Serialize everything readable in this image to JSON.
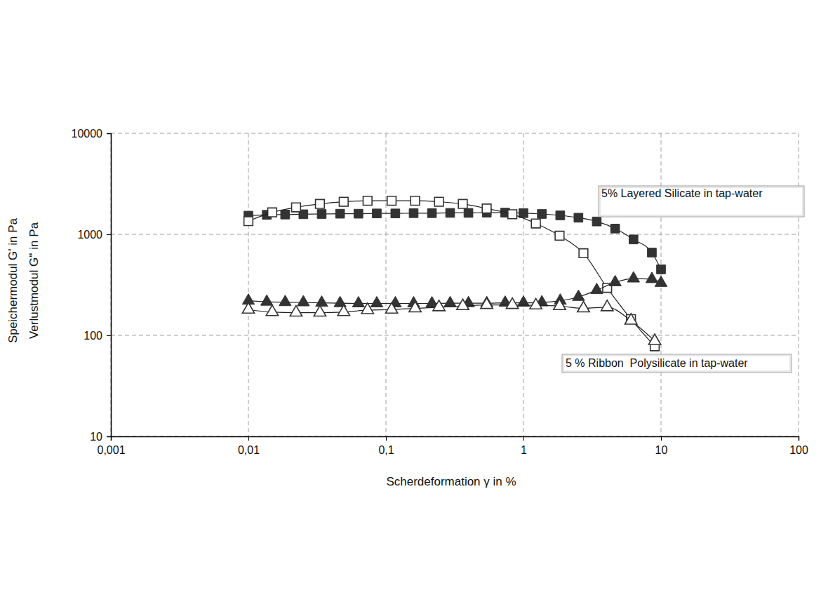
{
  "chart_data": {
    "type": "scatter",
    "xlabel": "Scherdeformation γ in %",
    "ylabel": [
      "Speichermodul G' in Pa",
      "Verlustmodul G'' in Pa"
    ],
    "annotations": [
      "5% Layered Silicate in tap-water",
      "5 % Ribbon  Polysilicate in tap-water"
    ],
    "log": true,
    "grid": true,
    "xlim": [
      0.001,
      100
    ],
    "ylim": [
      10,
      10000
    ],
    "xticks": [
      {
        "value": 0.001,
        "label": "0,001"
      },
      {
        "value": 0.01,
        "label": "0,01"
      },
      {
        "value": 0.1,
        "label": "0,1"
      },
      1,
      10,
      100
    ],
    "yticks": [
      10,
      100,
      1000,
      10000
    ],
    "series": [
      {
        "color": "#333333",
        "marker": "square",
        "line_style": "solid",
        "x": [
          0.01,
          0.0136,
          0.0185,
          0.0251,
          0.0341,
          0.0464,
          0.0631,
          0.0858,
          0.117,
          0.159,
          0.216,
          0.293,
          0.398,
          0.541,
          0.736,
          1.0,
          1.36,
          1.85,
          2.51,
          3.41,
          4.64,
          6.31,
          8.58,
          10
        ],
        "values": [
          1530,
          1560,
          1570,
          1580,
          1590,
          1600,
          1600,
          1610,
          1610,
          1620,
          1620,
          1630,
          1630,
          1640,
          1640,
          1620,
          1590,
          1540,
          1460,
          1340,
          1140,
          890,
          660,
          450
        ]
      },
      {
        "color": "#333333",
        "marker": "square-open",
        "line_style": "solid",
        "x": [
          0.01,
          0.0149,
          0.0222,
          0.0331,
          0.0493,
          0.0735,
          0.11,
          0.163,
          0.243,
          0.362,
          0.54,
          0.83,
          1.23,
          1.83,
          2.73,
          4.06,
          6.05,
          9.0
        ],
        "values": [
          1350,
          1650,
          1850,
          2000,
          2100,
          2150,
          2150,
          2150,
          2100,
          2000,
          1800,
          1580,
          1280,
          970,
          650,
          295,
          145,
          78
        ]
      },
      {
        "color": "#333333",
        "marker": "triangle",
        "line_style": "solid",
        "x": [
          0.01,
          0.0136,
          0.0185,
          0.0251,
          0.0341,
          0.0464,
          0.0631,
          0.0858,
          0.117,
          0.159,
          0.216,
          0.293,
          0.398,
          0.541,
          0.736,
          1.0,
          1.36,
          1.85,
          2.51,
          3.41,
          4.64,
          6.31,
          8.58,
          10
        ],
        "values": [
          220,
          215,
          213,
          212,
          210,
          208,
          207,
          207,
          207,
          207,
          207,
          208,
          208,
          208,
          210,
          210,
          212,
          220,
          240,
          280,
          335,
          365,
          360,
          330
        ]
      },
      {
        "color": "#333333",
        "marker": "triangle-open",
        "line_style": "solid",
        "x": [
          0.01,
          0.0149,
          0.0222,
          0.0331,
          0.0493,
          0.0735,
          0.11,
          0.163,
          0.243,
          0.362,
          0.54,
          0.83,
          1.23,
          1.83,
          2.73,
          4.06,
          6.05,
          9.0
        ],
        "values": [
          180,
          170,
          168,
          168,
          170,
          178,
          180,
          185,
          190,
          195,
          200,
          200,
          198,
          195,
          185,
          190,
          140,
          88
        ]
      }
    ]
  }
}
